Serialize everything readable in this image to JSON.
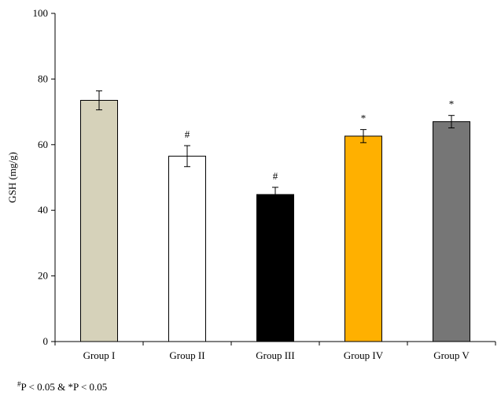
{
  "chart_data": {
    "type": "bar",
    "title": "",
    "xlabel": "",
    "ylabel": "GSH (mg/g)",
    "ylim": [
      0,
      100
    ],
    "yticks": [
      0,
      20,
      40,
      60,
      80,
      100
    ],
    "grid": false,
    "categories": [
      "Group I",
      "Group II",
      "Group III",
      "Group IV",
      "Group V"
    ],
    "values": [
      73.5,
      56.5,
      44.8,
      62.6,
      67.0
    ],
    "errors": [
      2.9,
      3.2,
      2.2,
      2.0,
      1.9
    ],
    "significance": [
      "",
      "#",
      "#",
      "*",
      "*"
    ],
    "colors": [
      "#d6d2ba",
      "#ffffff",
      "#000000",
      "#ffb000",
      "#767676"
    ],
    "footnote": {
      "sup": "#",
      "text": "P < 0.05 & *P < 0.05"
    }
  }
}
